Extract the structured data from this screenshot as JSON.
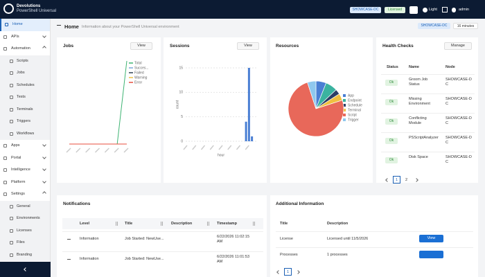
{
  "topbar": {
    "brand": "Devolutions",
    "product": "PowerShell Universal",
    "server": "SHOWCASE-DC",
    "license": "Licensed",
    "theme": "Light",
    "user": "admin"
  },
  "sidebar": {
    "items": [
      {
        "label": "Home",
        "active": true
      },
      {
        "label": "APIs"
      },
      {
        "label": "Automation",
        "children": [
          "Scripts",
          "Jobs",
          "Schedules",
          "Tests",
          "Terminals",
          "Triggers",
          "Workflows"
        ]
      },
      {
        "label": "Apps"
      },
      {
        "label": "Portal"
      },
      {
        "label": "Intelligence"
      },
      {
        "label": "Platform"
      },
      {
        "label": "Settings",
        "children": [
          "General",
          "Environments",
          "Licenses",
          "Files",
          "Branding"
        ]
      }
    ]
  },
  "header": {
    "title": "Home",
    "subtitle": "Information about your PowerShell Universal environment",
    "server": "SHOWCASE-DC",
    "uptime": "16 minutes"
  },
  "jobs": {
    "title": "Jobs",
    "button": "View",
    "chart_data": {
      "type": "line",
      "categories": [
        null,
        null,
        null,
        null,
        null,
        null,
        null
      ],
      "ylim": [
        0,
        15
      ],
      "series": [
        {
          "name": "Total",
          "color": "#3cb371",
          "values": [
            0,
            0,
            0,
            0,
            0,
            0,
            15
          ]
        },
        {
          "name": "Succes...",
          "color": "#7aa6d8",
          "values": [
            0,
            0,
            0,
            0,
            0,
            0,
            0
          ]
        },
        {
          "name": "Failed",
          "color": "#2c3e50",
          "values": [
            0,
            0,
            0,
            0,
            0,
            0,
            0
          ]
        },
        {
          "name": "Warning",
          "color": "#f0c040",
          "values": [
            0,
            0,
            0,
            0,
            0,
            0,
            0
          ]
        },
        {
          "name": "Error",
          "color": "#e74c3c",
          "values": [
            0,
            0,
            0,
            0,
            0,
            0,
            0
          ]
        }
      ]
    }
  },
  "sessions": {
    "title": "Sessions",
    "button": "View",
    "chart_data": {
      "type": "bar",
      "categories": [
        null,
        null,
        null,
        null,
        null,
        null,
        null,
        null,
        null,
        null,
        null,
        null,
        null,
        null,
        null,
        null,
        null,
        null,
        null,
        null,
        null,
        null,
        null,
        null
      ],
      "values": [
        0,
        0,
        0,
        0,
        0,
        0,
        0,
        0,
        0,
        0,
        0,
        0,
        0,
        0,
        0,
        0,
        0,
        0,
        0,
        0,
        4,
        15,
        1,
        0
      ],
      "color": "#4a7fd4",
      "ylim": [
        0,
        15
      ],
      "yticks": [
        0,
        5,
        10,
        15
      ],
      "xlabel": "hour",
      "ylabel": "count",
      "grid": true
    }
  },
  "resources": {
    "title": "Resources",
    "chart_data": {
      "type": "pie",
      "categories": [
        "App",
        "Endpoint",
        "Schedule",
        "Terminal",
        "Script",
        "Trigger"
      ],
      "values": [
        6,
        7,
        3,
        4,
        75,
        5
      ],
      "colors": [
        "#4a7fd4",
        "#3bb3a0",
        "#2c3e66",
        "#f0c040",
        "#e8685a",
        "#8fc8ee"
      ]
    }
  },
  "health": {
    "title": "Health Checks",
    "button": "Manage",
    "columns": [
      "Status",
      "Name",
      "Node"
    ],
    "rows": [
      [
        "Ok",
        "Groom Job Status",
        "SHOWCASE-DC"
      ],
      [
        "Ok",
        "Missing Environment",
        "SHOWCASE-DC"
      ],
      [
        "Ok",
        "Conflicting Module",
        "SHOWCASE-DC"
      ],
      [
        "Ok",
        "PSScriptAnalyzer",
        "SHOWCASE-DC"
      ],
      [
        "Ok",
        "Disk Space",
        "SHOWCASE-DC"
      ]
    ],
    "pages": [
      "1",
      "2"
    ]
  },
  "notifications": {
    "title": "Notifications",
    "columns": [
      "Level",
      "Title",
      "Description",
      "Timestamp"
    ],
    "rows": [
      {
        "level": "Information",
        "title": "Job Started: NewUse...",
        "timestamp": "6/22/2026 11:02:15 AM"
      },
      {
        "level": "Information",
        "title": "Job Started: NewUse...",
        "timestamp": "6/22/2026 11:01:53 AM"
      }
    ]
  },
  "additional": {
    "title": "Additional Information",
    "columns": [
      "Title",
      "Description"
    ],
    "rows": [
      {
        "title": "License",
        "description": "Licensed until 11/5/2026",
        "button": "View"
      },
      {
        "title": "Processes",
        "description": "1 processes"
      }
    ],
    "pages": [
      "1"
    ]
  }
}
